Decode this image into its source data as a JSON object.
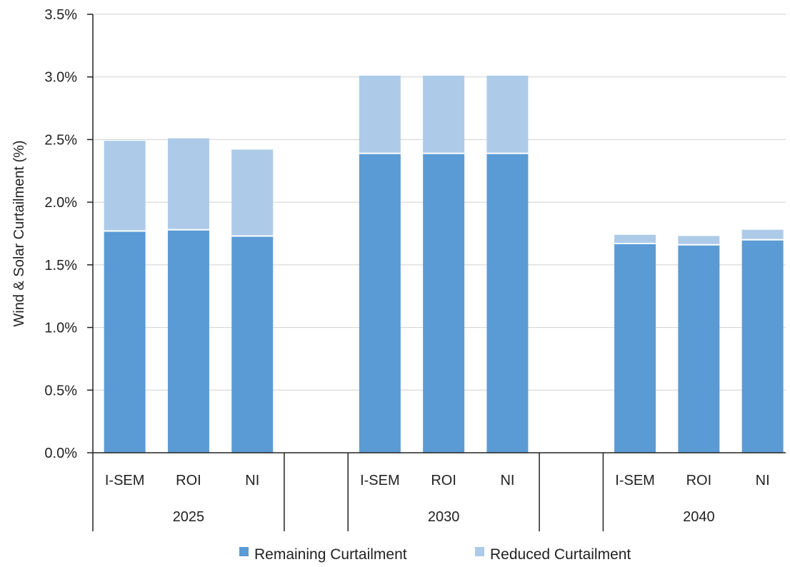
{
  "colors": {
    "remaining": "#5b9bd5",
    "reduced": "#adcbe9",
    "grid": "#d0d0d0",
    "axis": "#222222"
  },
  "chart_data": {
    "type": "bar",
    "stacked": true,
    "title": "",
    "xlabel": "",
    "ylabel": "Wind & Solar Curtailment (%)",
    "ylim": [
      0,
      3.5
    ],
    "ytick_values": [
      0,
      0.5,
      1.0,
      1.5,
      2.0,
      2.5,
      3.0,
      3.5
    ],
    "ytick_labels": [
      "0.0%",
      "0.5%",
      "1.0%",
      "1.5%",
      "2.0%",
      "2.5%",
      "3.0%",
      "3.5%"
    ],
    "grid": true,
    "legend_position": "bottom",
    "groups": [
      {
        "label": "2025",
        "categories": [
          "I-SEM",
          "ROI",
          "NI"
        ]
      },
      {
        "label": "2030",
        "categories": [
          "I-SEM",
          "ROI",
          "NI"
        ]
      },
      {
        "label": "2040",
        "categories": [
          "I-SEM",
          "ROI",
          "NI"
        ]
      }
    ],
    "series": [
      {
        "name": "Remaining Curtailment",
        "values": [
          1.77,
          1.78,
          1.73,
          2.39,
          2.39,
          2.39,
          1.67,
          1.66,
          1.7
        ]
      },
      {
        "name": "Reduced Curtailment",
        "values": [
          0.72,
          0.73,
          0.69,
          0.62,
          0.62,
          0.62,
          0.07,
          0.07,
          0.08
        ]
      }
    ]
  }
}
